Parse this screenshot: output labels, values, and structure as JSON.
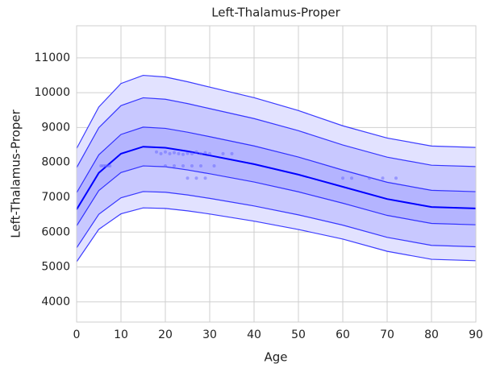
{
  "chart_data": {
    "type": "line",
    "title": "Left-Thalamus-Proper",
    "xlabel": "Age",
    "ylabel": "Left-Thalamus-Proper",
    "x": [
      0,
      5,
      10,
      15,
      20,
      25,
      30,
      40,
      50,
      60,
      70,
      80,
      90
    ],
    "series": [
      {
        "color": "#0000ff",
        "values": [
          8400,
          9590,
          10263,
          10498,
          10450,
          10315,
          10160,
          9858,
          9488,
          9050,
          8700,
          8470,
          8430
        ]
      },
      {
        "color": "#0000ff",
        "values": [
          7850,
          8996,
          9630,
          9854,
          9812,
          9688,
          9544,
          9258,
          8910,
          8500,
          8150,
          7920,
          7880
        ]
      },
      {
        "color": "#0000ff",
        "values": [
          7130,
          8218,
          8802,
          9012,
          8977,
          8867,
          8738,
          8473,
          8154,
          7780,
          7430,
          7200,
          7160
        ]
      },
      {
        "color": "#0000ff",
        "values": [
          6650,
          7700,
          8250,
          8450,
          8420,
          8320,
          8200,
          7950,
          7650,
          7300,
          6950,
          6720,
          6680
        ]
      },
      {
        "color": "#0000ff",
        "values": [
          6180,
          7192,
          7709,
          7900,
          7875,
          7784,
          7674,
          7438,
          7156,
          6830,
          6480,
          6250,
          6210
        ]
      },
      {
        "color": "#0000ff",
        "values": [
          5550,
          6512,
          6985,
          7163,
          7144,
          7066,
          6968,
          6751,
          6495,
          6200,
          5850,
          5620,
          5580
        ]
      },
      {
        "color": "#0000ff",
        "values": [
          5150,
          6080,
          6525,
          6695,
          6680,
          6610,
          6520,
          6315,
          6075,
          5800,
          5450,
          5220,
          5180
        ]
      }
    ],
    "bands": [
      {
        "from": 0,
        "to": 1,
        "color": "#e2e2ff"
      },
      {
        "from": 1,
        "to": 2,
        "color": "#c8c8ff"
      },
      {
        "from": 2,
        "to": 4,
        "color": "#b4b4ff"
      },
      {
        "from": 4,
        "to": 5,
        "color": "#c8c8ff"
      },
      {
        "from": 5,
        "to": 6,
        "color": "#e2e2ff"
      }
    ],
    "points": {
      "color": "#6666ff",
      "x": [
        5.5,
        6,
        6.5,
        7,
        7.5,
        18,
        19,
        20,
        21,
        22,
        23,
        24,
        25,
        26,
        27,
        28,
        29,
        30,
        33,
        35,
        20,
        22,
        24,
        26,
        28,
        31,
        25,
        27,
        29,
        60,
        62,
        66,
        69,
        72
      ],
      "y": [
        7900,
        7900,
        7900,
        7900,
        7900,
        8300,
        8250,
        8300,
        8250,
        8280,
        8250,
        8230,
        8260,
        8250,
        8300,
        8250,
        8280,
        8250,
        8250,
        8250,
        7900,
        7900,
        7900,
        7900,
        7900,
        7900,
        7550,
        7550,
        7550,
        7550,
        7550,
        7550,
        7550,
        7550
      ]
    },
    "xlim": [
      0,
      90
    ],
    "xticks": [
      0,
      10,
      20,
      30,
      40,
      50,
      60,
      70,
      80,
      90
    ],
    "ylim": [
      3420,
      11920
    ],
    "yticks": [
      4000,
      5000,
      6000,
      7000,
      8000,
      9000,
      10000,
      11000
    ],
    "grid": true
  }
}
